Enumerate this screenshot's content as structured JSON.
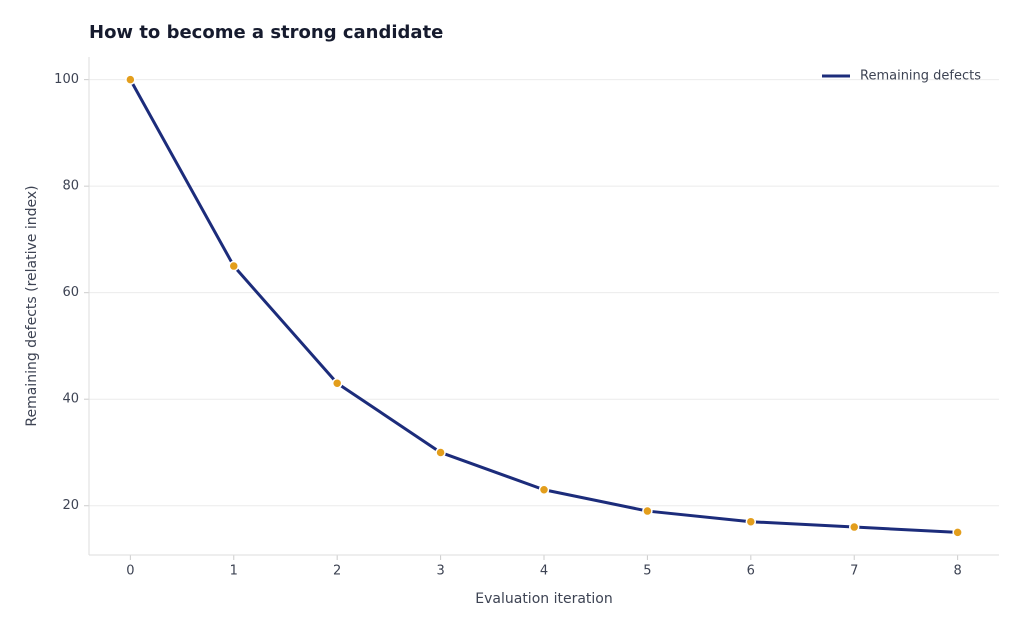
{
  "chart_data": {
    "type": "line",
    "title": "How to become a strong candidate",
    "x_label": "Evaluation iteration",
    "y_label": "Remaining defects (relative index)",
    "x": [
      0,
      1,
      2,
      3,
      4,
      5,
      6,
      7,
      8
    ],
    "series": [
      {
        "name": "Remaining defects",
        "color": "#1c2c7b",
        "marker_color": "#e39e1c",
        "values": [
          100,
          65,
          43,
          30,
          23,
          19,
          17,
          16,
          15
        ]
      }
    ],
    "xlim": [
      -0.4,
      8.4
    ],
    "xticks": [
      0,
      1,
      2,
      3,
      4,
      5,
      6,
      7,
      8
    ],
    "ylim": [
      10.75,
      104.25
    ],
    "yticks": [
      20,
      40,
      60,
      80,
      100
    ],
    "grid": true,
    "legend": "upper right"
  }
}
